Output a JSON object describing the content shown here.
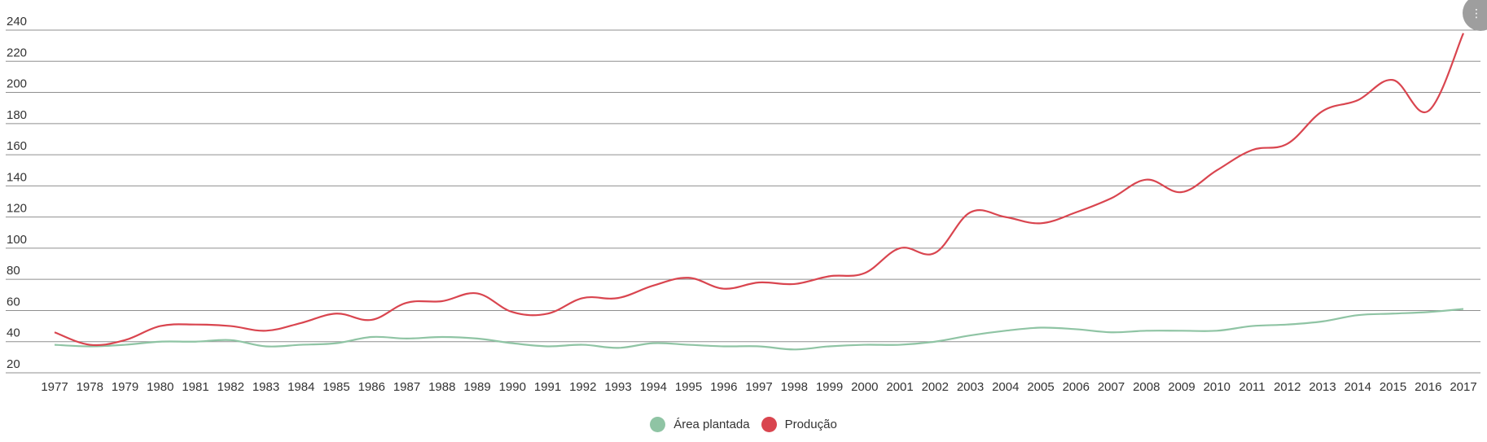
{
  "chart_data": {
    "type": "line",
    "x": [
      "1977",
      "1978",
      "1979",
      "1980",
      "1981",
      "1982",
      "1983",
      "1984",
      "1985",
      "1986",
      "1987",
      "1988",
      "1989",
      "1990",
      "1991",
      "1992",
      "1993",
      "1994",
      "1995",
      "1996",
      "1997",
      "1998",
      "1999",
      "2000",
      "2001",
      "2002",
      "2003",
      "2004",
      "2005",
      "2006",
      "2007",
      "2008",
      "2009",
      "2010",
      "2011",
      "2012",
      "2013",
      "2014",
      "2015",
      "2016",
      "2017"
    ],
    "y_ticks": [
      "20",
      "40",
      "60",
      "80",
      "100",
      "120",
      "140",
      "160",
      "180",
      "200",
      "220",
      "240"
    ],
    "ylim": [
      20,
      240
    ],
    "grid": true,
    "legend_position": "bottom-center",
    "series": [
      {
        "name": "Área plantada",
        "color": "#8fc4a4",
        "values": [
          38,
          37,
          38,
          40,
          40,
          41,
          37,
          38,
          39,
          43,
          42,
          43,
          42,
          39,
          37,
          38,
          36,
          39,
          38,
          37,
          37,
          35,
          37,
          38,
          38,
          40,
          44,
          47,
          49,
          48,
          46,
          47,
          47,
          47,
          50,
          51,
          53,
          57,
          58,
          59,
          61
        ]
      },
      {
        "name": "Produção",
        "color": "#d9454f",
        "values": [
          46,
          38,
          41,
          50,
          51,
          50,
          47,
          52,
          58,
          54,
          65,
          66,
          71,
          59,
          58,
          68,
          68,
          76,
          81,
          74,
          78,
          77,
          82,
          84,
          100,
          97,
          123,
          120,
          116,
          123,
          132,
          144,
          136,
          150,
          163,
          167,
          188,
          195,
          208,
          188,
          238
        ]
      }
    ]
  },
  "ui": {
    "menu_icon": "more-options-icon",
    "menu_glyph": "⋮"
  }
}
